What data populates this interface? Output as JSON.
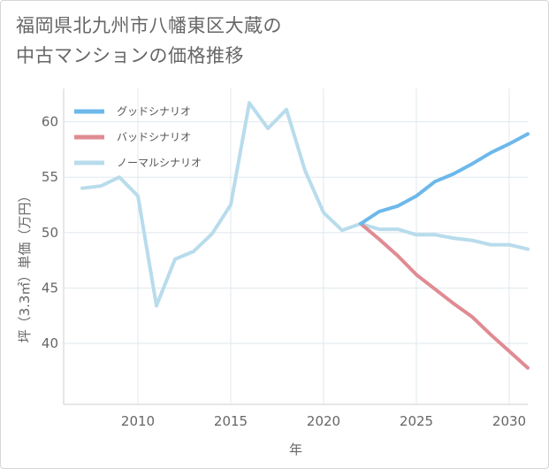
{
  "chart_data": {
    "type": "line",
    "title_lines": [
      "福岡県北九州市八幡東区大蔵の",
      "中古マンションの価格推移"
    ],
    "xlabel": "年",
    "ylabel": "坪（3.3㎡）単価（万円）",
    "xlim": [
      2006,
      2031
    ],
    "ylim": [
      34.5,
      63
    ],
    "x_ticks": [
      2010,
      2015,
      2020,
      2025,
      2030
    ],
    "y_ticks": [
      40,
      45,
      50,
      55,
      60
    ],
    "grid": true,
    "legend_position": "top-left",
    "series": [
      {
        "name": "グッドシナリオ",
        "color": "#6db8ea",
        "x": [
          2022,
          2023,
          2024,
          2025,
          2026,
          2027,
          2028,
          2029,
          2030,
          2031
        ],
        "y": [
          50.8,
          51.9,
          52.4,
          53.3,
          54.6,
          55.3,
          56.2,
          57.2,
          58.0,
          58.9
        ]
      },
      {
        "name": "バッドシナリオ",
        "color": "#e08b93",
        "x": [
          2022,
          2023,
          2024,
          2025,
          2026,
          2027,
          2028,
          2029,
          2030,
          2031
        ],
        "y": [
          50.8,
          49.4,
          47.9,
          46.2,
          44.9,
          43.6,
          42.4,
          40.8,
          39.3,
          37.8
        ]
      },
      {
        "name": "ノーマルシナリオ",
        "color": "#b8dcec",
        "x": [
          2007,
          2008,
          2009,
          2010,
          2011,
          2012,
          2013,
          2014,
          2015,
          2016,
          2017,
          2018,
          2019,
          2020,
          2021,
          2022,
          2023,
          2024,
          2025,
          2026,
          2027,
          2028,
          2029,
          2030,
          2031
        ],
        "y": [
          54.0,
          54.2,
          55.0,
          53.3,
          43.4,
          47.6,
          48.3,
          49.9,
          52.5,
          61.7,
          59.4,
          61.1,
          55.6,
          51.8,
          50.2,
          50.8,
          50.3,
          50.3,
          49.8,
          49.8,
          49.5,
          49.3,
          48.9,
          48.9,
          48.5
        ]
      }
    ]
  }
}
